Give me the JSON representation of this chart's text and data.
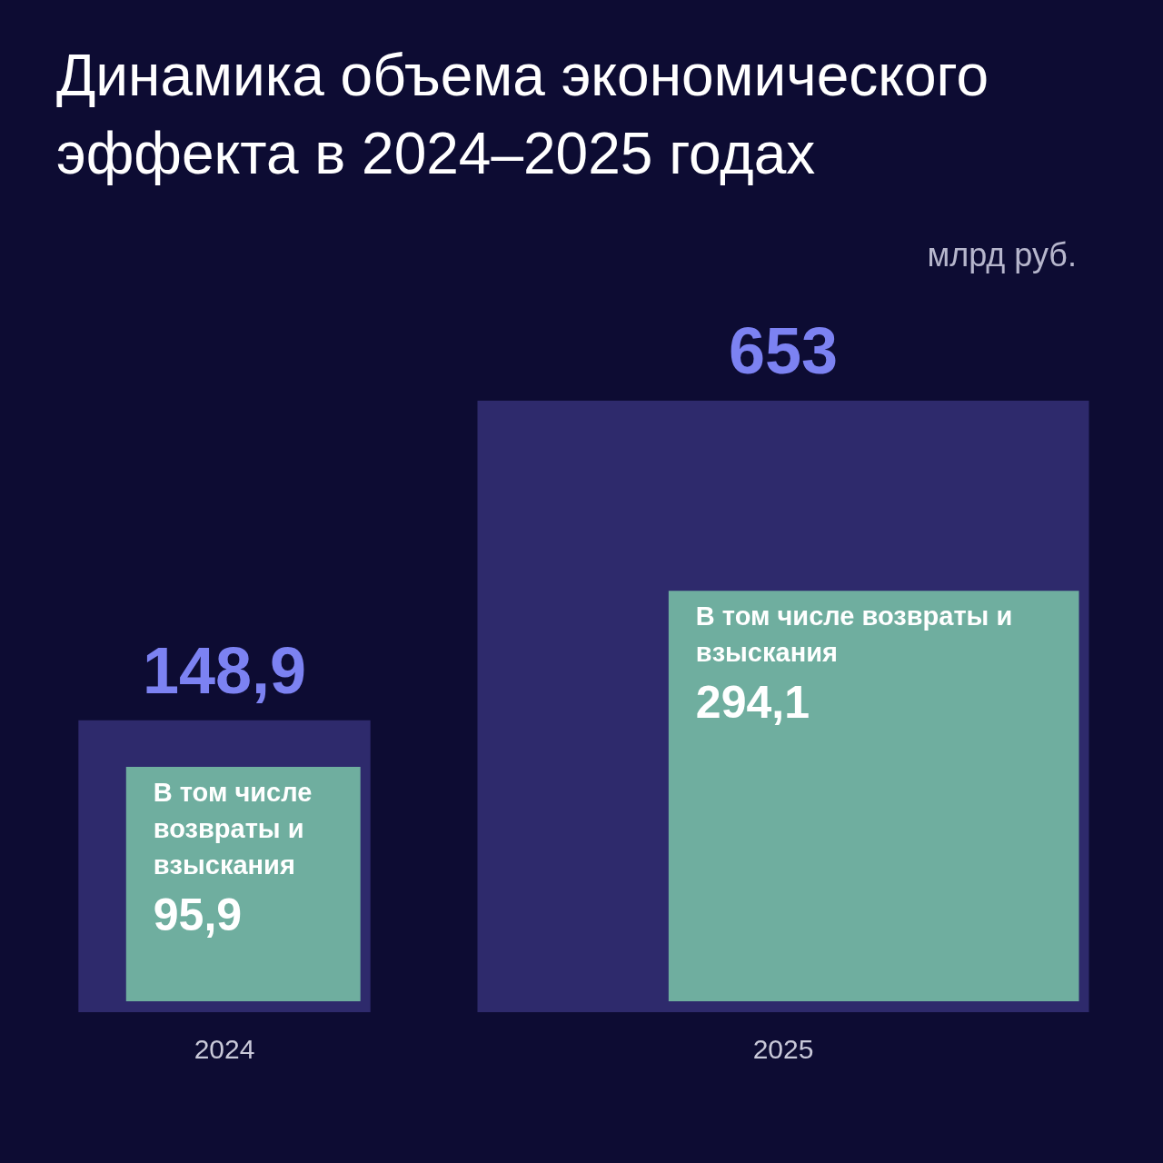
{
  "chart_data": {
    "type": "other",
    "title": "Динамика объема экономического эффекта в 2024–2025 годах",
    "subtitle": "млрд руб.",
    "categories": [
      "2024",
      "2025"
    ],
    "data_labels": true,
    "series": [
      {
        "color": "#2e2a6c",
        "values": [
          148.9,
          653
        ],
        "value_labels": [
          "148,9",
          "653"
        ]
      },
      {
        "name": "В том числе возвраты и взыскания",
        "color": "#6fae9f",
        "values": [
          95.9,
          294.1
        ],
        "value_labels": [
          "95,9",
          "294,1"
        ]
      }
    ]
  }
}
